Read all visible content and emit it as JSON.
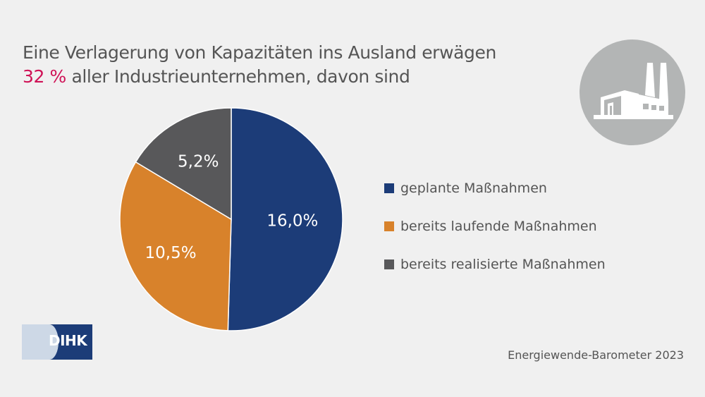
{
  "header": {
    "title_line1": "Eine Verlagerung von Kapazitäten ins Ausland erwägen",
    "title_highlight": "32 %",
    "title_line2_rest": " aller Industrieunternehmen, davon sind",
    "highlight_color": "#cf1256"
  },
  "icon": {
    "name": "factory-icon",
    "circle_color": "#b3b5b5"
  },
  "chart_data": {
    "type": "pie",
    "title": "Eine Verlagerung von Kapazitäten ins Ausland erwägen 32 % aller Industrieunternehmen, davon sind",
    "unit": "%",
    "start": "top",
    "direction": "clockwise",
    "legend_position": "right",
    "slices": [
      {
        "label": "geplante Maßnahmen",
        "value": 16.0,
        "display": "16,0%",
        "color": "#1c3c78"
      },
      {
        "label": "bereits laufende Maßnahmen",
        "value": 10.5,
        "display": "10,5%",
        "color": "#d8822b"
      },
      {
        "label": "bereits realisierte Maßnahmen",
        "value": 5.2,
        "display": "5,2%",
        "color": "#58585a"
      }
    ]
  },
  "legend": {
    "items": [
      {
        "label": "geplante Maßnahmen",
        "color": "#1c3c78"
      },
      {
        "label": "bereits laufende Maßnahmen",
        "color": "#d8822b"
      },
      {
        "label": "bereits realisierte Maßnahmen",
        "color": "#58585a"
      }
    ]
  },
  "footer": {
    "logo_text": "DIHK",
    "source": "Energiewende-Barometer 2023"
  }
}
